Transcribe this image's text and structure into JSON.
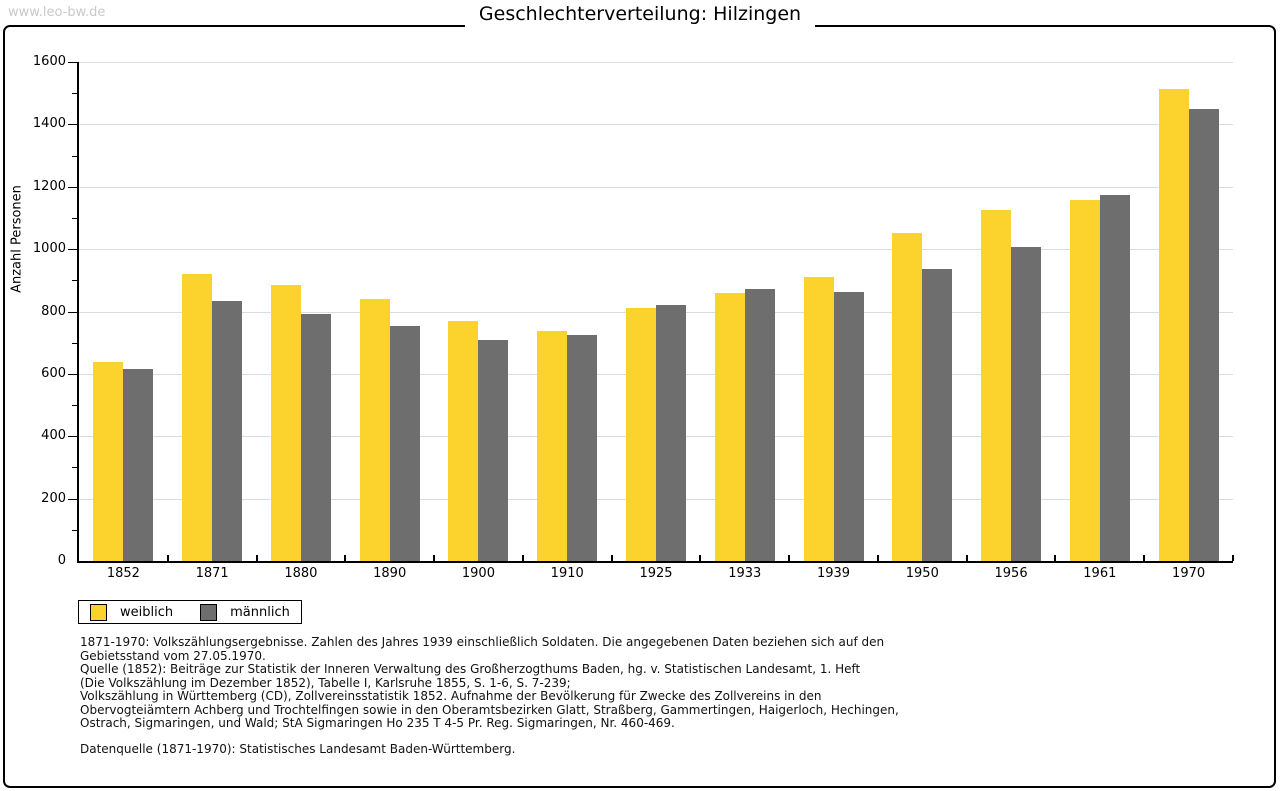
{
  "page": {
    "watermark": "www.leo-bw.de"
  },
  "chart_data": {
    "type": "bar",
    "title": "Geschlechterverteilung: Hilzingen",
    "xlabel": "",
    "ylabel": "Anzahl Personen",
    "ylim": [
      0,
      1600
    ],
    "ytick_step": 200,
    "y_minor_tick_step": 100,
    "grid": "horizontal light-gray lines every 200",
    "legend_position": "bottom-left",
    "bar_colors": {
      "weiblich": "#FCD32D",
      "maennlich": "#6E6E6E"
    },
    "categories": [
      "1852",
      "1871",
      "1880",
      "1890",
      "1900",
      "1910",
      "1925",
      "1933",
      "1939",
      "1950",
      "1956",
      "1961",
      "1970"
    ],
    "series": [
      {
        "name": "weiblich",
        "color": "#FCD32D",
        "values": [
          638,
          919,
          886,
          840,
          768,
          739,
          810,
          858,
          910,
          1052,
          1125,
          1158,
          1515
        ]
      },
      {
        "name": "männlich",
        "color": "#6E6E6E",
        "values": [
          617,
          834,
          793,
          753,
          710,
          724,
          821,
          872,
          863,
          937,
          1008,
          1172,
          1450
        ]
      }
    ]
  },
  "footer": {
    "lines": [
      "1871-1970: Volkszählungsergebnisse. Zahlen des Jahres 1939 einschließlich Soldaten. Die angegebenen Daten beziehen sich auf den",
      "Gebietsstand vom 27.05.1970.",
      "Quelle (1852): Beiträge zur Statistik der Inneren Verwaltung des Großherzogthums Baden, hg. v. Statistischen Landesamt, 1. Heft",
      "(Die Volkszählung im Dezember 1852), Tabelle I, Karlsruhe 1855, S. 1-6, S. 7-239;",
      "Volkszählung in Württemberg (CD), Zollvereinsstatistik 1852. Aufnahme der Bevölkerung für Zwecke des Zollvereins in den",
      "Obervogteiämtern Achberg und Trochtelfingen sowie in den Oberamtsbezirken Glatt, Straßberg, Gammertingen, Haigerloch, Hechingen,",
      "Ostrach, Sigmaringen, und Wald; StA Sigmaringen Ho 235 T 4-5 Pr. Reg. Sigmaringen, Nr. 460-469."
    ],
    "datasource": "Datenquelle (1871-1970): Statistisches Landesamt Baden-Württemberg."
  }
}
